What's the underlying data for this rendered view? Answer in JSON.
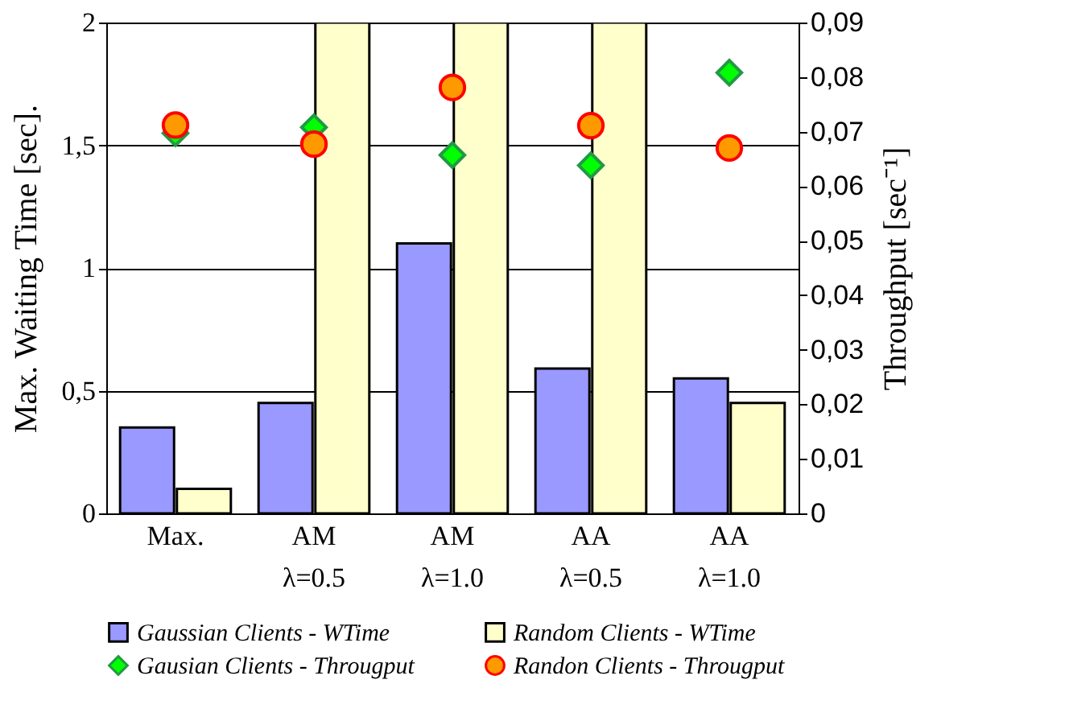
{
  "chart_data": {
    "type": "bar",
    "ylabel": "Max. Waiting Time [sec].",
    "y2label": "Throughput [sec⁻¹]",
    "categories": [
      "Max.",
      "AM\nλ=0.5",
      "AM\nλ=1.0",
      "AA\nλ=0.5",
      "AA\nλ=1.0"
    ],
    "series": [
      {
        "name": "Gaussian Clients - WTime",
        "color": "#9999ff",
        "values": [
          0.35,
          0.45,
          1.1,
          0.59,
          0.55
        ]
      },
      {
        "name": "Random Clients - WTime",
        "color": "#ffffcc",
        "values": [
          0.1,
          2,
          2,
          2,
          0.45
        ]
      },
      {
        "name": "Gausian Clients - Througput",
        "type": "scatter",
        "marker": "diamond",
        "axis": "y2",
        "color": "#00ff00",
        "values": [
          0.0697,
          0.0708,
          0.0657,
          0.0638,
          0.0808
        ]
      },
      {
        "name": "Randon Clients - Througput",
        "type": "scatter",
        "marker": "circle",
        "axis": "y2",
        "color": "#ff9900",
        "values": [
          0.0712,
          0.0677,
          0.0781,
          0.0711,
          0.067
        ]
      }
    ],
    "ylim": [
      0,
      2
    ],
    "yticks": [
      0,
      {
        "value": 0.5,
        "label": "0,5"
      },
      1,
      {
        "value": 1.5,
        "label": "1,5"
      },
      2
    ],
    "y2lim": [
      0,
      0.09
    ],
    "y2ticks": [
      0,
      {
        "value": 0.01,
        "label": "0,01"
      },
      {
        "value": 0.02,
        "label": "0,02"
      },
      {
        "value": 0.03,
        "label": "0,03"
      },
      {
        "value": 0.04,
        "label": "0,04"
      },
      {
        "value": 0.05,
        "label": "0,05"
      },
      {
        "value": 0.06,
        "label": "0,06"
      },
      {
        "value": 0.07,
        "label": "0,07"
      },
      {
        "value": 0.08,
        "label": "0,08"
      },
      {
        "value": 0.09,
        "label": "0,09"
      }
    ],
    "grid": "y",
    "legend": "bottom"
  }
}
